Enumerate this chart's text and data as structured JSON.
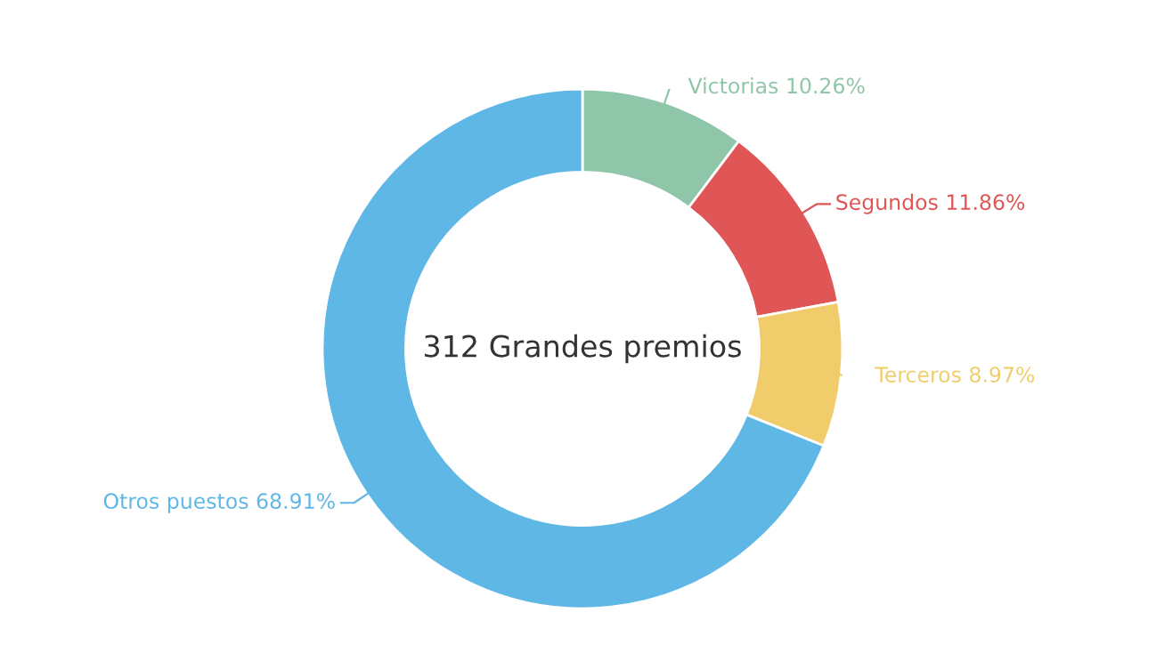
{
  "chart_data": {
    "type": "donut",
    "categories": [
      "Victorias",
      "Segundos",
      "Terceros",
      "Otros puestos"
    ],
    "values": [
      10.26,
      11.86,
      8.97,
      68.91
    ],
    "colors": [
      "#8fc5a8",
      "#e05555",
      "#f0cc6a",
      "#5fb7e5"
    ],
    "value_labels": [
      "10.26%",
      "11.86%",
      "8.97%",
      "68.91%"
    ],
    "annotations": [
      "312 Grandes premios"
    ]
  }
}
